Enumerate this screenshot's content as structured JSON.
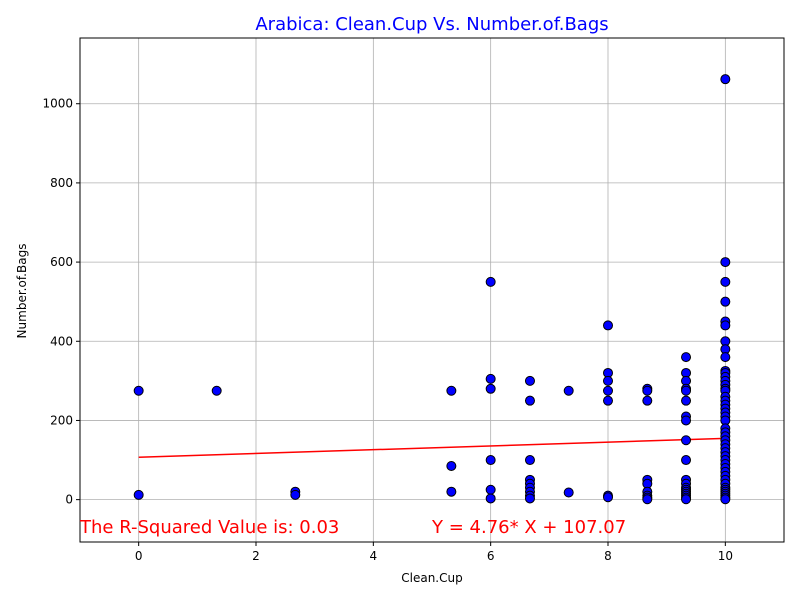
{
  "chart_data": {
    "type": "scatter",
    "title": "Arabica: Clean.Cup Vs. Number.of.Bags",
    "xlabel": "Clean.Cup",
    "ylabel": "Number.of.Bags",
    "xlim": [
      -1,
      11
    ],
    "ylim": [
      -107,
      1166
    ],
    "xticks": [
      0,
      2,
      4,
      6,
      8,
      10
    ],
    "yticks": [
      0,
      200,
      400,
      600,
      800,
      1000
    ],
    "grid": true,
    "colors": {
      "title": "#0000ff",
      "points": "#0000ff",
      "point_edge": "#000000",
      "fit_line": "#ff0000",
      "annotation": "#ff0000",
      "grid": "#b0b0b0"
    },
    "points": [
      [
        0,
        275
      ],
      [
        0,
        12
      ],
      [
        1.33,
        275
      ],
      [
        2.67,
        20
      ],
      [
        2.67,
        12
      ],
      [
        5.33,
        275
      ],
      [
        5.33,
        85
      ],
      [
        5.33,
        20
      ],
      [
        6,
        550
      ],
      [
        6,
        305
      ],
      [
        6,
        280
      ],
      [
        6,
        100
      ],
      [
        6,
        25
      ],
      [
        6,
        3
      ],
      [
        6.67,
        300
      ],
      [
        6.67,
        250
      ],
      [
        6.67,
        100
      ],
      [
        6.67,
        50
      ],
      [
        6.67,
        40
      ],
      [
        6.67,
        30
      ],
      [
        6.67,
        20
      ],
      [
        6.67,
        10
      ],
      [
        6.67,
        3
      ],
      [
        7.33,
        275
      ],
      [
        7.33,
        18
      ],
      [
        8,
        440
      ],
      [
        8,
        320
      ],
      [
        8,
        300
      ],
      [
        8,
        275
      ],
      [
        8,
        250
      ],
      [
        8,
        10
      ],
      [
        8,
        6
      ],
      [
        8.67,
        280
      ],
      [
        8.67,
        275
      ],
      [
        8.67,
        250
      ],
      [
        8.67,
        50
      ],
      [
        8.67,
        40
      ],
      [
        8.67,
        20
      ],
      [
        8.67,
        10
      ],
      [
        8.67,
        5
      ],
      [
        8.67,
        1
      ],
      [
        9.33,
        360
      ],
      [
        9.33,
        320
      ],
      [
        9.33,
        300
      ],
      [
        9.33,
        280
      ],
      [
        9.33,
        275
      ],
      [
        9.33,
        250
      ],
      [
        9.33,
        210
      ],
      [
        9.33,
        200
      ],
      [
        9.33,
        150
      ],
      [
        9.33,
        100
      ],
      [
        9.33,
        50
      ],
      [
        9.33,
        40
      ],
      [
        9.33,
        30
      ],
      [
        9.33,
        25
      ],
      [
        9.33,
        20
      ],
      [
        9.33,
        15
      ],
      [
        9.33,
        10
      ],
      [
        9.33,
        5
      ],
      [
        9.33,
        1
      ],
      [
        10,
        1062
      ],
      [
        10,
        600
      ],
      [
        10,
        550
      ],
      [
        10,
        500
      ],
      [
        10,
        450
      ],
      [
        10,
        440
      ],
      [
        10,
        400
      ],
      [
        10,
        380
      ],
      [
        10,
        360
      ],
      [
        10,
        325
      ],
      [
        10,
        320
      ],
      [
        10,
        310
      ],
      [
        10,
        300
      ],
      [
        10,
        290
      ],
      [
        10,
        280
      ],
      [
        10,
        275
      ],
      [
        10,
        260
      ],
      [
        10,
        250
      ],
      [
        10,
        240
      ],
      [
        10,
        230
      ],
      [
        10,
        220
      ],
      [
        10,
        210
      ],
      [
        10,
        200
      ],
      [
        10,
        180
      ],
      [
        10,
        170
      ],
      [
        10,
        160
      ],
      [
        10,
        150
      ],
      [
        10,
        140
      ],
      [
        10,
        130
      ],
      [
        10,
        120
      ],
      [
        10,
        110
      ],
      [
        10,
        100
      ],
      [
        10,
        90
      ],
      [
        10,
        80
      ],
      [
        10,
        70
      ],
      [
        10,
        60
      ],
      [
        10,
        50
      ],
      [
        10,
        40
      ],
      [
        10,
        30
      ],
      [
        10,
        25
      ],
      [
        10,
        20
      ],
      [
        10,
        15
      ],
      [
        10,
        10
      ],
      [
        10,
        5
      ],
      [
        10,
        1
      ]
    ],
    "fit_line": {
      "slope": 4.76,
      "intercept": 107.07,
      "x_range": [
        0,
        10
      ]
    },
    "annotations": {
      "r_squared": "The R-Squared Value is: 0.03",
      "equation": "Y = 4.76* X + 107.07"
    }
  }
}
